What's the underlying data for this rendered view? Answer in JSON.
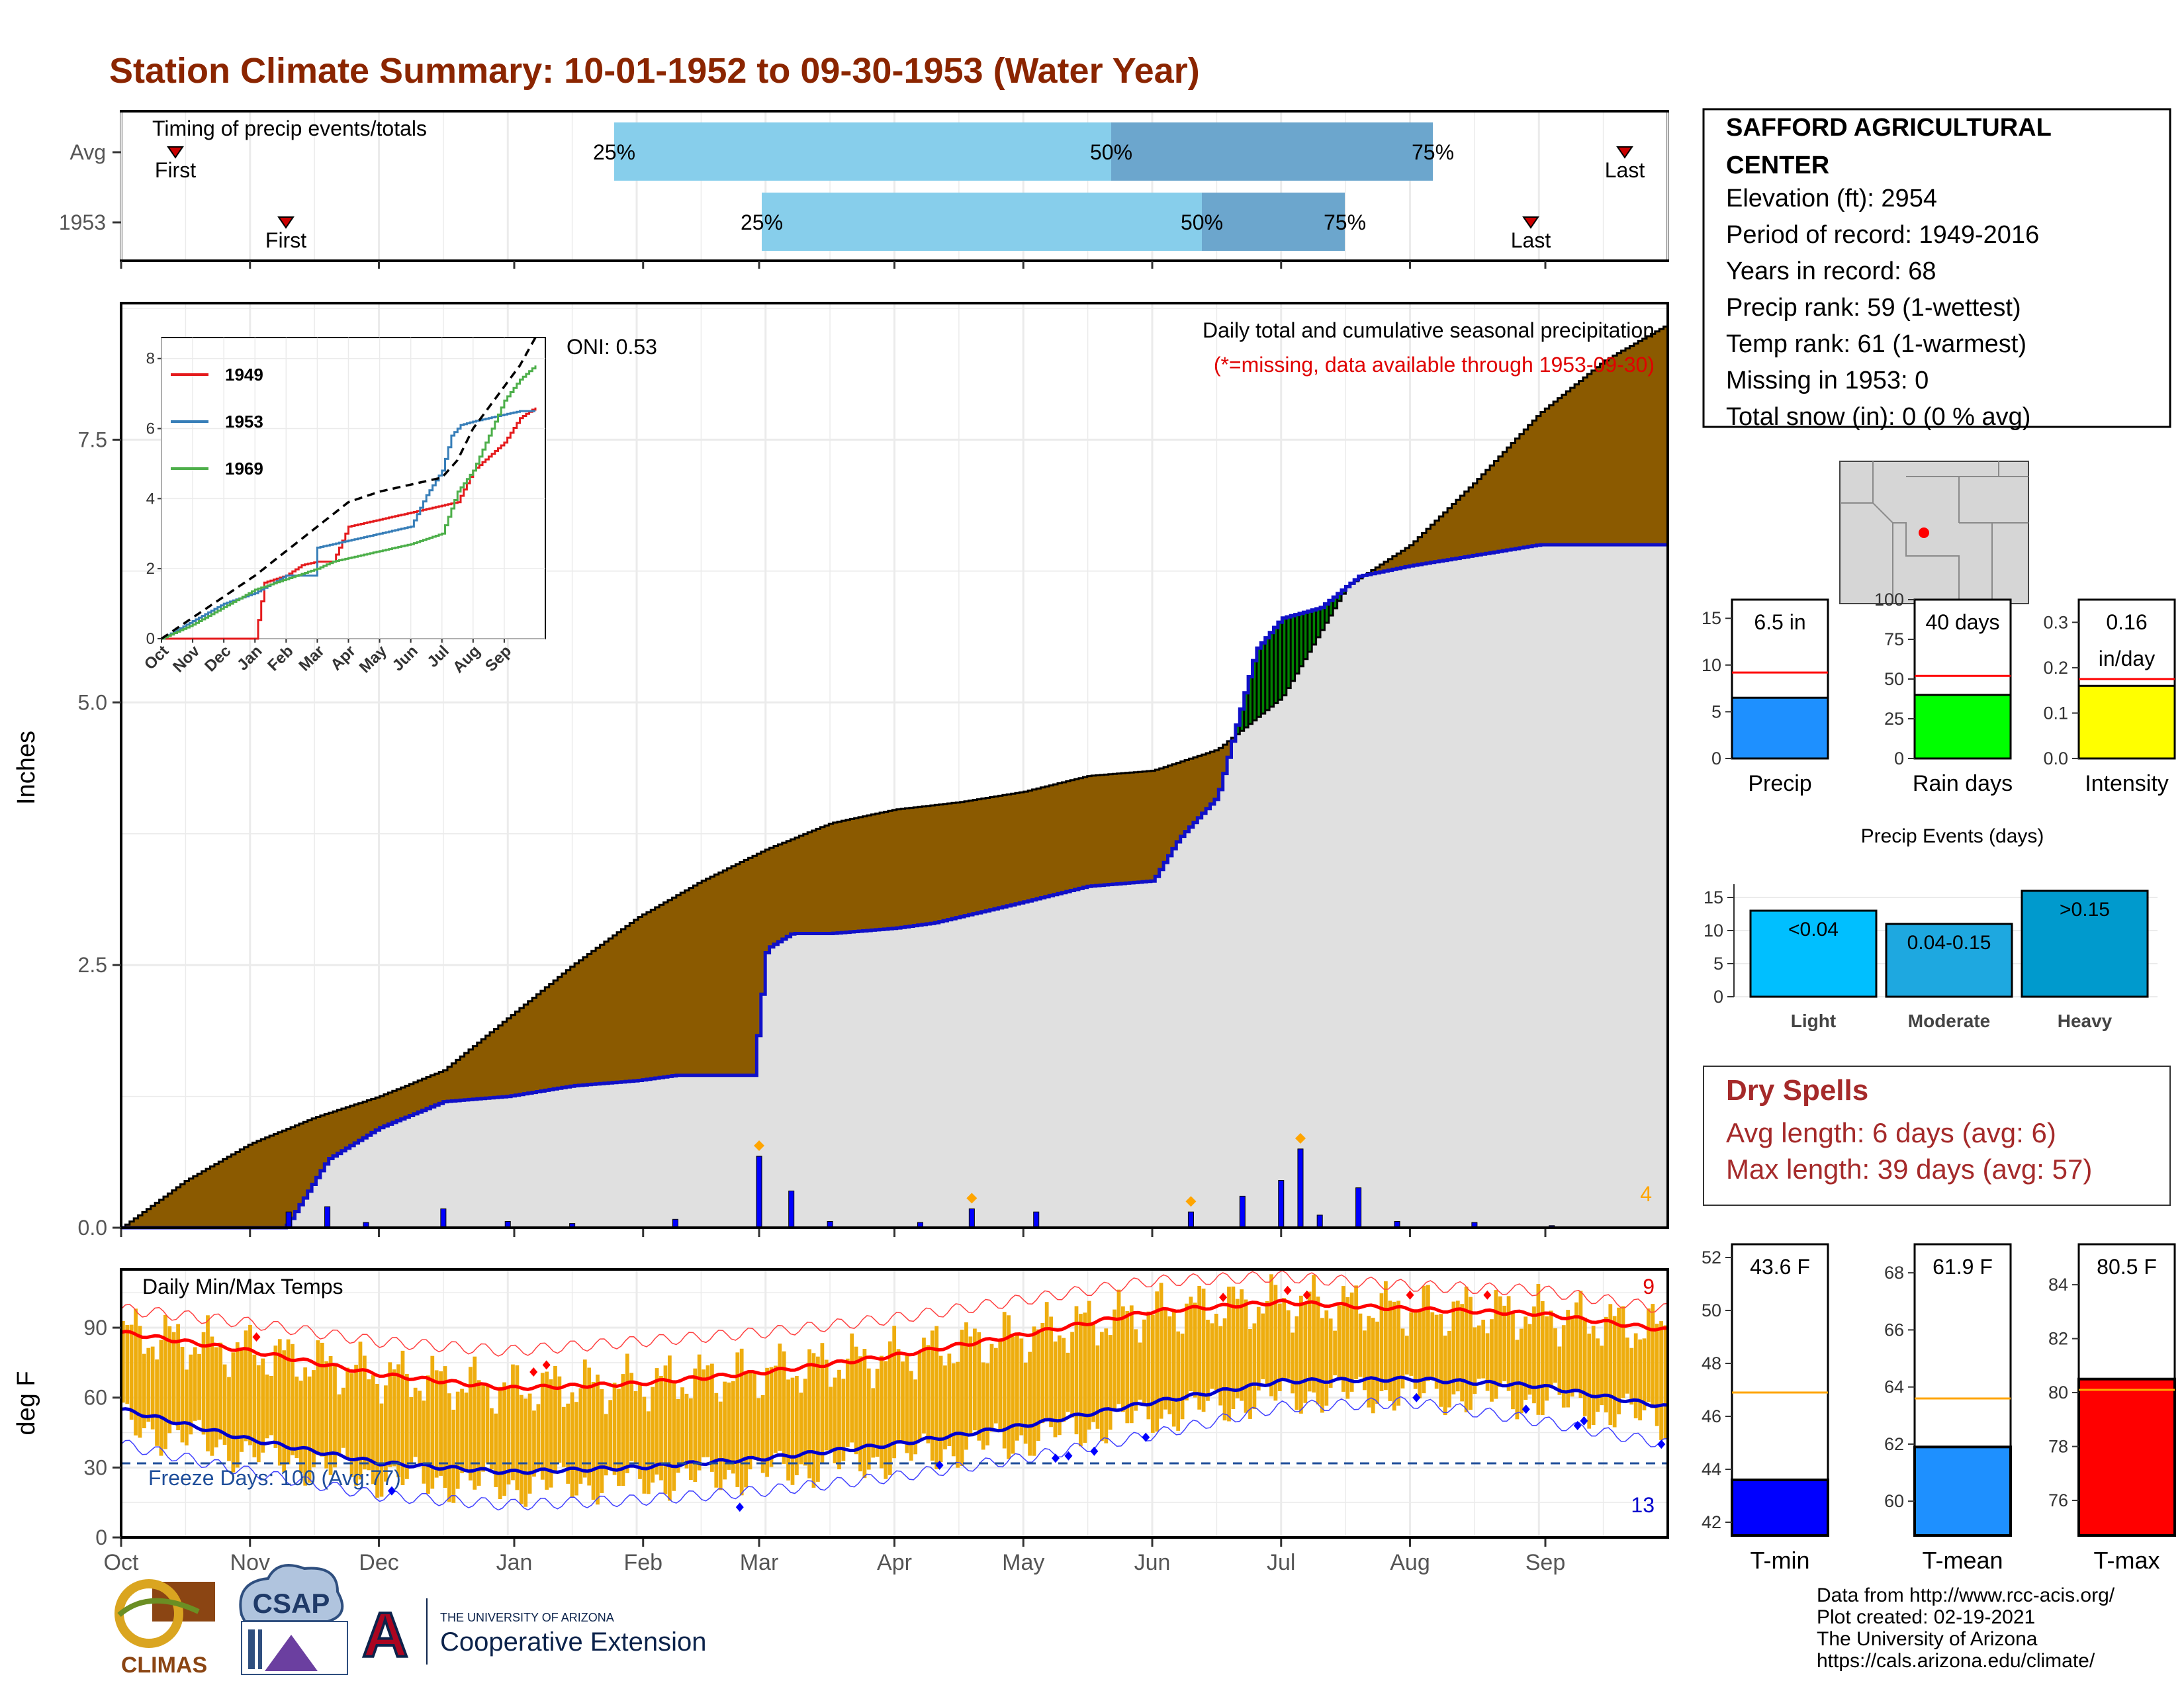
{
  "title": "Station Climate Summary: 10-01-1952 to 09-30-1953 (Water Year)",
  "colors": {
    "title": "#8B2500",
    "precip_area": "#8B5A00",
    "precip_line": "#1010C8",
    "precip_fill_gray": "#E0E0E0",
    "bar_light_blue": "#87CEEB",
    "bar_dark_blue": "#6CA6CD",
    "temp_bar": "#EEAD0E",
    "tmax_line": "#FF0000",
    "tmin_line": "#0000CD",
    "green_excess": "#008000",
    "orange_marker": "#FFA500"
  },
  "timing": {
    "label": "Timing of precip events/totals",
    "rows": [
      {
        "label": "Avg",
        "first": "First",
        "last": "Last",
        "p25": "25%",
        "p50": "50%",
        "p75": "75%"
      },
      {
        "label": "1953",
        "first": "First",
        "last": "Last",
        "p25": "25%",
        "p50": "50%",
        "p75": "75%"
      }
    ]
  },
  "station": {
    "name_line1": "SAFFORD AGRICULTURAL",
    "name_line2": "CENTER",
    "elevation": "Elevation (ft): 2954",
    "period": "Period of record: 1949-2016",
    "years": "Years in record: 68",
    "precip_rank": "Precip rank: 59 (1-wettest)",
    "temp_rank": "Temp rank: 61 (1-warmest)",
    "missing": "Missing in 1953: 0",
    "snow": "Total snow (in): 0 (0 % avg)"
  },
  "precip_panel": {
    "ylabel": "Inches",
    "heading": "Daily total and cumulative seasonal precipitation",
    "subheading": "(*=missing, data available through 1953-09-30)",
    "oni": "ONI: 0.53",
    "corner_count": "4",
    "yticks": [
      "0.0",
      "2.5",
      "5.0",
      "7.5"
    ]
  },
  "inset": {
    "legend": [
      "1949",
      "1953",
      "1969"
    ],
    "yticks": [
      "0",
      "2",
      "4",
      "6",
      "8"
    ],
    "xticks": [
      "Oct",
      "Nov",
      "Dec",
      "Jan",
      "Feb",
      "Mar",
      "Apr",
      "May",
      "Jun",
      "Jul",
      "Aug",
      "Sep"
    ]
  },
  "temp_panel": {
    "ylabel": "deg F",
    "heading": "Daily Min/Max Temps",
    "freeze": "Freeze Days: 100 (Avg:77)",
    "count_high": "9",
    "count_low": "13",
    "yticks": [
      "0",
      "30",
      "60",
      "90"
    ],
    "xticks": [
      "Oct",
      "Nov",
      "Dec",
      "Jan",
      "Feb",
      "Mar",
      "Apr",
      "May",
      "Jun",
      "Jul",
      "Aug",
      "Sep"
    ]
  },
  "summary_bars": [
    {
      "label": "Precip",
      "value_text": "6.5 in",
      "yticks": [
        "0",
        "5",
        "10",
        "15"
      ]
    },
    {
      "label": "Rain days",
      "value_text": "40 days",
      "yticks": [
        "0",
        "25",
        "50",
        "75",
        "100"
      ]
    },
    {
      "label": "Intensity",
      "value_text": "0.16",
      "value_text2": "in/day",
      "yticks": [
        "0.0",
        "0.1",
        "0.2",
        "0.3"
      ]
    }
  ],
  "events": {
    "title": "Precip Events (days)",
    "yticks": [
      "0",
      "5",
      "10",
      "15"
    ],
    "bars": [
      {
        "label": "Light",
        "value_text": "<0.04"
      },
      {
        "label": "Moderate",
        "value_text": "0.04-0.15"
      },
      {
        "label": "Heavy",
        "value_text": ">0.15"
      }
    ]
  },
  "dry_spells": {
    "title": "Dry Spells",
    "avg": "Avg length: 6 days (avg: 6)",
    "max": "Max length: 39 days (avg: 57)"
  },
  "temp_bars": [
    {
      "label": "T-min",
      "value_text": "43.6 F",
      "yticks": [
        "42",
        "44",
        "46",
        "48",
        "50",
        "52"
      ]
    },
    {
      "label": "T-mean",
      "value_text": "61.9 F",
      "yticks": [
        "60",
        "62",
        "64",
        "66",
        "68"
      ]
    },
    {
      "label": "T-max",
      "value_text": "80.5 F",
      "yticks": [
        "76",
        "78",
        "80",
        "82",
        "84"
      ]
    }
  ],
  "footer": {
    "line1": "Data from http://www.rcc-acis.org/",
    "line2": "Plot created: 02-19-2021",
    "line3": "The University of Arizona",
    "line4": "https://cals.arizona.edu/climate/"
  },
  "logos": {
    "climas": "CLIMAS",
    "csap": "CSAP",
    "ua_small": "THE UNIVERSITY OF ARIZONA",
    "ua_big": "Cooperative Extension",
    "ua_letter": "A"
  },
  "chart_data": [
    {
      "type": "area",
      "title": "Daily total and cumulative seasonal precipitation",
      "ylabel": "Inches",
      "ylim": [
        0,
        8.8
      ],
      "x_unit": "month (0 = Oct 1, 12 = Sep 30)",
      "series": [
        {
          "name": "average cumulative",
          "x": [
            0,
            0.5,
            1,
            1.5,
            2,
            2.5,
            3,
            3.5,
            4,
            4.5,
            5,
            5.5,
            6,
            6.5,
            7,
            7.5,
            8,
            8.5,
            9,
            9.5,
            10,
            10.5,
            11,
            11.5,
            12
          ],
          "values": [
            0,
            0.45,
            0.8,
            1.05,
            1.25,
            1.5,
            2.0,
            2.5,
            2.95,
            3.3,
            3.6,
            3.85,
            3.98,
            4.05,
            4.15,
            4.3,
            4.35,
            4.55,
            5.05,
            6.1,
            6.5,
            7.1,
            7.75,
            8.25,
            8.6
          ]
        },
        {
          "name": "1953 cumulative",
          "x": [
            0,
            1.27,
            1.6,
            2,
            2.5,
            3,
            3.5,
            4,
            4.3,
            4.9,
            5,
            5.2,
            5.5,
            6,
            6.3,
            7,
            7.5,
            8,
            8.2,
            8.5,
            8.8,
            9,
            9.3,
            9.6,
            10,
            10.5,
            11,
            12
          ],
          "values": [
            0,
            0,
            0.65,
            0.95,
            1.2,
            1.25,
            1.35,
            1.4,
            1.45,
            1.45,
            2.65,
            2.8,
            2.8,
            2.85,
            2.9,
            3.1,
            3.25,
            3.3,
            3.7,
            4.1,
            5.5,
            5.8,
            5.9,
            6.2,
            6.3,
            6.4,
            6.5,
            6.5
          ]
        }
      ],
      "daily_bars": {
        "x": [
          1.3,
          1.6,
          1.9,
          2.5,
          3,
          3.5,
          4.3,
          4.95,
          5.2,
          5.5,
          6.2,
          6.6,
          7.1,
          8.3,
          8.7,
          9,
          9.15,
          9.3,
          9.6,
          9.9,
          10.5,
          11.1
        ],
        "values": [
          0.15,
          0.2,
          0.05,
          0.18,
          0.06,
          0.04,
          0.08,
          0.68,
          0.35,
          0.06,
          0.05,
          0.18,
          0.15,
          0.15,
          0.3,
          0.45,
          0.75,
          0.12,
          0.38,
          0.06,
          0.05,
          0.02
        ]
      }
    },
    {
      "type": "line",
      "title": "",
      "ylim": [
        0,
        8.8
      ],
      "x_unit": "month (0 = Oct 1, 12 = Sep 30)",
      "series": [
        {
          "name": "1949",
          "x": [
            0,
            3,
            3.3,
            4,
            4.5,
            5,
            5.5,
            6,
            6.5,
            7,
            7.5,
            8,
            8.5,
            9,
            9.5,
            10,
            10.5,
            11,
            11.5,
            12
          ],
          "values": [
            0,
            0,
            1.6,
            1.8,
            2.1,
            2.2,
            2.2,
            3.2,
            3.3,
            3.4,
            3.5,
            3.6,
            3.7,
            3.8,
            3.9,
            4.8,
            5.2,
            5.6,
            6.3,
            6.6
          ]
        },
        {
          "name": "1953",
          "x": [
            0,
            1,
            2,
            3,
            4,
            4.9,
            5,
            6,
            7,
            8,
            8.5,
            9,
            9.3,
            9.6,
            10,
            10.5,
            11,
            11.5,
            12
          ],
          "values": [
            0,
            0.5,
            1,
            1.3,
            1.8,
            1.8,
            2.6,
            2.8,
            3,
            3.2,
            4.1,
            4.8,
            5.8,
            6.1,
            6.2,
            6.3,
            6.4,
            6.5,
            6.5
          ]
        },
        {
          "name": "1969",
          "x": [
            0,
            1,
            2,
            3,
            4,
            5,
            5.5,
            6,
            7,
            8,
            9,
            9.5,
            10,
            10.5,
            11,
            11.5,
            12
          ],
          "values": [
            0,
            0.4,
            0.9,
            1.4,
            1.7,
            2,
            2.2,
            2.3,
            2.5,
            2.7,
            3,
            4.2,
            4.8,
            5.8,
            6.8,
            7.4,
            7.8
          ]
        },
        {
          "name": "average",
          "x": [
            0,
            1,
            2,
            3,
            4,
            5,
            6,
            7,
            8,
            9,
            9.5,
            10,
            10.5,
            11,
            11.5,
            12
          ],
          "values": [
            0,
            0.6,
            1.2,
            1.8,
            2.5,
            3.2,
            3.9,
            4.2,
            4.4,
            4.6,
            5.1,
            6,
            6.6,
            7.2,
            7.8,
            8.6
          ]
        }
      ]
    },
    {
      "type": "line",
      "title": "Daily Min/Max Temps",
      "ylabel": "deg F",
      "ylim": [
        0,
        115
      ],
      "x_unit": "month (0 = Oct 1, 12 = Sep 30)",
      "series": [
        {
          "name": "avg max",
          "x": [
            0,
            1,
            2,
            3,
            4,
            5,
            6,
            7,
            8,
            9,
            10,
            11,
            12
          ],
          "values": [
            88,
            80,
            70,
            64,
            66,
            71,
            78,
            87,
            97,
            101,
            98,
            96,
            89
          ]
        },
        {
          "name": "avg min",
          "x": [
            0,
            1,
            2,
            3,
            4,
            5,
            6,
            7,
            8,
            9,
            10,
            11,
            12
          ],
          "values": [
            55,
            42,
            32,
            28,
            30,
            34,
            40,
            48,
            58,
            67,
            68,
            65,
            56
          ]
        },
        {
          "name": "record max",
          "x": [
            0,
            1,
            2,
            3,
            4,
            5,
            6,
            7,
            8,
            9,
            10,
            11,
            12
          ],
          "values": [
            98,
            92,
            84,
            80,
            84,
            88,
            94,
            102,
            110,
            112,
            108,
            106,
            98
          ]
        },
        {
          "name": "record min",
          "x": [
            0,
            1,
            2,
            3,
            4,
            5,
            6,
            7,
            8,
            9,
            10,
            11,
            12
          ],
          "values": [
            40,
            28,
            18,
            14,
            16,
            20,
            26,
            34,
            44,
            56,
            58,
            50,
            40
          ]
        }
      ]
    },
    {
      "type": "bar",
      "title": "",
      "categories": [
        "Precip",
        "Rain days",
        "Intensity"
      ],
      "values": [
        6.5,
        40,
        0.16
      ],
      "averages": [
        9.2,
        52,
        0.175
      ]
    },
    {
      "type": "bar",
      "title": "Precip Events (days)",
      "categories": [
        "Light",
        "Moderate",
        "Heavy"
      ],
      "values": [
        13,
        11,
        16
      ],
      "ylim": [
        0,
        17
      ]
    },
    {
      "type": "bar",
      "title": "",
      "categories": [
        "T-min",
        "T-mean",
        "T-max"
      ],
      "values": [
        43.6,
        61.9,
        80.5
      ],
      "averages": [
        46.9,
        63.6,
        80.1
      ]
    }
  ]
}
